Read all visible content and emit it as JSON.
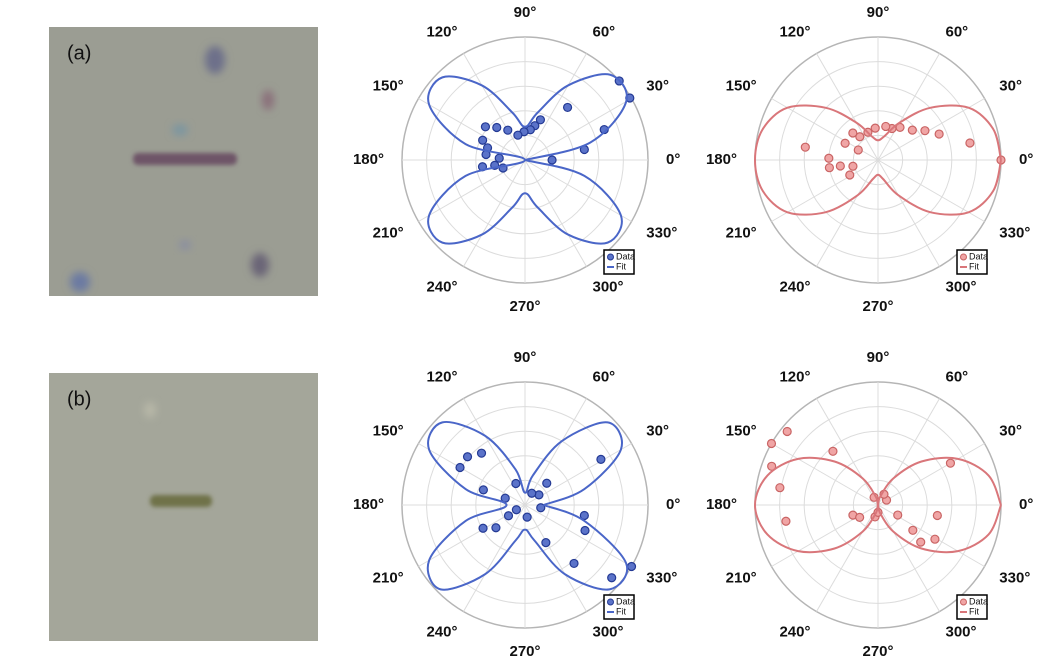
{
  "panels": [
    {
      "label": "(a)"
    },
    {
      "label": "(b)"
    }
  ],
  "chart_data": [
    {
      "type": "polar",
      "rlim": [
        0,
        1
      ],
      "rticks": [
        0.2,
        0.4,
        0.6,
        0.8,
        1
      ],
      "legend": "lower right",
      "thetaticks": [
        {
          "value": 0,
          "label": "0°"
        },
        {
          "value": 30,
          "label": "30°"
        },
        {
          "value": 60,
          "label": "60°"
        },
        {
          "value": 90,
          "label": "90°"
        },
        {
          "value": 120,
          "label": "120°"
        },
        {
          "value": 150,
          "label": "150°"
        },
        {
          "value": 180,
          "label": "180°"
        },
        {
          "value": 210,
          "label": "210°"
        },
        {
          "value": 240,
          "label": "240°"
        },
        {
          "value": 270,
          "label": "270°"
        },
        {
          "value": 300,
          "label": "300°"
        },
        {
          "value": 330,
          "label": "330°"
        }
      ],
      "series": [
        {
          "name": "Data",
          "mode": "markers",
          "color": "#5b73c9",
          "edge": "#243a94",
          "theta": [
            40,
            30.6,
            51,
            21,
            10,
            0,
            69,
            74,
            80,
            92,
            106,
            120,
            131,
            140,
            155,
            162,
            172,
            176,
            190,
            200,
            189
          ],
          "r": [
            1.0,
            0.99,
            0.55,
            0.69,
            0.49,
            0.22,
            0.35,
            0.29,
            0.25,
            0.23,
            0.21,
            0.28,
            0.35,
            0.42,
            0.38,
            0.32,
            0.32,
            0.21,
            0.25,
            0.19,
            0.35
          ]
        },
        {
          "name": "Fit",
          "mode": "line",
          "color": "#4a66c8",
          "theta": [
            0,
            15,
            30,
            45,
            60,
            75,
            90,
            105,
            120,
            135,
            150,
            165,
            180,
            195,
            210,
            225,
            240,
            255,
            270,
            285,
            300,
            315,
            330,
            345,
            360
          ],
          "r": [
            0,
            0.55,
            0.95,
            0.98,
            0.7,
            0.4,
            0.27,
            0.4,
            0.7,
            0.95,
            0.9,
            0.5,
            0,
            0.5,
            0.9,
            0.95,
            0.7,
            0.4,
            0.27,
            0.4,
            0.7,
            0.95,
            0.9,
            0.5,
            0
          ]
        }
      ]
    },
    {
      "type": "polar",
      "rlim": [
        0,
        1
      ],
      "rticks": [
        0.2,
        0.4,
        0.6,
        0.8,
        1
      ],
      "legend": "lower right",
      "thetaticks": [
        {
          "value": 0,
          "label": "0°"
        },
        {
          "value": 30,
          "label": "30°"
        },
        {
          "value": 60,
          "label": "60°"
        },
        {
          "value": 90,
          "label": "90°"
        },
        {
          "value": 120,
          "label": "120°"
        },
        {
          "value": 150,
          "label": "150°"
        },
        {
          "value": 180,
          "label": "180°"
        },
        {
          "value": 210,
          "label": "210°"
        },
        {
          "value": 240,
          "label": "240°"
        },
        {
          "value": 270,
          "label": "270°"
        },
        {
          "value": 300,
          "label": "300°"
        },
        {
          "value": 330,
          "label": "330°"
        }
      ],
      "series": [
        {
          "name": "Data",
          "mode": "markers",
          "color": "#f0a5a5",
          "edge": "#c96464",
          "theta": [
            0,
            10.5,
            23,
            32,
            41,
            56,
            66,
            77,
            95,
            110,
            128,
            133,
            153,
            153,
            170,
            178,
            189,
            189,
            194,
            208
          ],
          "r": [
            1.0,
            0.76,
            0.54,
            0.45,
            0.37,
            0.32,
            0.28,
            0.28,
            0.26,
            0.24,
            0.24,
            0.3,
            0.3,
            0.18,
            0.6,
            0.4,
            0.4,
            0.31,
            0.21,
            0.26
          ]
        },
        {
          "name": "Fit",
          "mode": "line",
          "color": "#d9767a",
          "theta": [
            0,
            15,
            30,
            45,
            60,
            75,
            90,
            105,
            120,
            135,
            150,
            165,
            180,
            195,
            210,
            225,
            240,
            255,
            270,
            285,
            300,
            315,
            330,
            345,
            360
          ],
          "r": [
            1.0,
            0.97,
            0.85,
            0.6,
            0.35,
            0.2,
            0.16,
            0.2,
            0.35,
            0.6,
            0.85,
            0.97,
            1.0,
            0.97,
            0.85,
            0.6,
            0.33,
            0.16,
            0.12,
            0.16,
            0.33,
            0.6,
            0.85,
            0.97,
            1.0
          ]
        }
      ]
    },
    {
      "type": "polar",
      "rlim": [
        0,
        1
      ],
      "rticks": [
        0.2,
        0.4,
        0.6,
        0.8,
        1
      ],
      "legend": "lower right",
      "thetaticks": [
        {
          "value": 0,
          "label": "0°"
        },
        {
          "value": 30,
          "label": "30°"
        },
        {
          "value": 60,
          "label": "60°"
        },
        {
          "value": 90,
          "label": "90°"
        },
        {
          "value": 120,
          "label": "120°"
        },
        {
          "value": 150,
          "label": "150°"
        },
        {
          "value": 180,
          "label": "180°"
        },
        {
          "value": 210,
          "label": "210°"
        },
        {
          "value": 240,
          "label": "240°"
        },
        {
          "value": 270,
          "label": "270°"
        },
        {
          "value": 300,
          "label": "300°"
        },
        {
          "value": 330,
          "label": "330°"
        }
      ],
      "series": [
        {
          "name": "Data",
          "mode": "markers",
          "color": "#5b73c9",
          "edge": "#243a94",
          "theta": [
            330,
            320,
            310,
            299,
            337,
            350,
            31,
            45,
            36,
            60,
            350,
            113,
            161,
            160,
            150,
            140,
            130,
            213,
            209,
            280,
            218,
            209
          ],
          "r": [
            1.0,
            0.92,
            0.62,
            0.35,
            0.53,
            0.49,
            0.72,
            0.25,
            0.14,
            0.11,
            0.13,
            0.19,
            0.17,
            0.36,
            0.61,
            0.61,
            0.55,
            0.16,
            0.08,
            0.1,
            0.3,
            0.39
          ]
        },
        {
          "name": "Fit",
          "mode": "line",
          "color": "#4a66c8",
          "theta": [
            0,
            15,
            30,
            45,
            60,
            75,
            90,
            105,
            120,
            135,
            150,
            165,
            180,
            195,
            210,
            225,
            240,
            255,
            270,
            285,
            300,
            315,
            330,
            345,
            360
          ],
          "r": [
            0.15,
            0.5,
            0.9,
            0.95,
            0.6,
            0.25,
            0.1,
            0.3,
            0.65,
            0.95,
            0.9,
            0.5,
            0.15,
            0.5,
            0.9,
            0.97,
            0.65,
            0.3,
            0.2,
            0.3,
            0.65,
            0.97,
            0.95,
            0.5,
            0.15
          ]
        }
      ]
    },
    {
      "type": "polar",
      "rlim": [
        0,
        1
      ],
      "rticks": [
        0.2,
        0.4,
        0.6,
        0.8,
        1
      ],
      "legend": "lower right",
      "thetaticks": [
        {
          "value": 0,
          "label": "0°"
        },
        {
          "value": 30,
          "label": "30°"
        },
        {
          "value": 60,
          "label": "60°"
        },
        {
          "value": 90,
          "label": "90°"
        },
        {
          "value": 120,
          "label": "120°"
        },
        {
          "value": 150,
          "label": "150°"
        },
        {
          "value": 180,
          "label": "180°"
        },
        {
          "value": 210,
          "label": "210°"
        },
        {
          "value": 240,
          "label": "240°"
        },
        {
          "value": 270,
          "label": "270°"
        },
        {
          "value": 300,
          "label": "300°"
        },
        {
          "value": 330,
          "label": "330°"
        }
      ],
      "series": [
        {
          "name": "Data",
          "mode": "markers",
          "color": "#f0a5a5",
          "edge": "#c96464",
          "theta": [
            150,
            141,
            130,
            160,
            170,
            190,
            30,
            350,
            329,
            319,
            324,
            333,
            30,
            61,
            117,
            202,
            214,
            256,
            270
          ],
          "r": [
            1.0,
            0.95,
            0.57,
            0.92,
            0.81,
            0.76,
            0.68,
            0.49,
            0.54,
            0.46,
            0.35,
            0.18,
            0.08,
            0.1,
            0.07,
            0.22,
            0.18,
            0.1,
            0.06
          ]
        },
        {
          "name": "Fit",
          "mode": "line",
          "color": "#d9767a",
          "theta": [
            0,
            15,
            30,
            45,
            60,
            75,
            90,
            105,
            120,
            135,
            150,
            165,
            180,
            195,
            210,
            225,
            240,
            255,
            270,
            285,
            300,
            315,
            330,
            345,
            360
          ],
          "r": [
            1.0,
            0.93,
            0.75,
            0.5,
            0.25,
            0.07,
            0,
            0.07,
            0.25,
            0.5,
            0.75,
            0.93,
            1.0,
            0.93,
            0.75,
            0.5,
            0.25,
            0.07,
            0,
            0.07,
            0.25,
            0.5,
            0.75,
            0.93,
            1.0
          ]
        }
      ]
    }
  ]
}
